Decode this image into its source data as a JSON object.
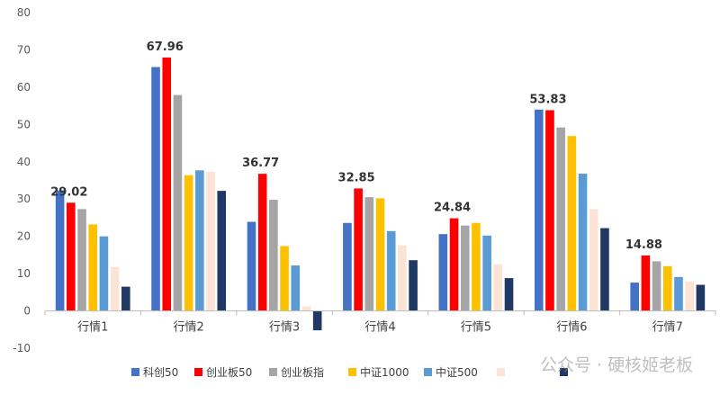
{
  "chart_data": {
    "type": "bar",
    "categories": [
      "行情1",
      "行情2",
      "行情3",
      "行情4",
      "行情5",
      "行情6",
      "行情7"
    ],
    "series": [
      {
        "name": "科创50",
        "color": "#4472C4",
        "values": [
          32.3,
          65.4,
          23.9,
          23.6,
          20.6,
          54.0,
          7.6
        ]
      },
      {
        "name": "创业板50",
        "color": "#FF0000",
        "values": [
          29.02,
          67.96,
          36.77,
          32.85,
          24.84,
          53.83,
          14.88
        ]
      },
      {
        "name": "创业板指",
        "color": "#A5A5A5",
        "values": [
          27.3,
          57.9,
          29.8,
          30.5,
          22.9,
          49.2,
          13.3
        ]
      },
      {
        "name": "中证1000",
        "color": "#FFC000",
        "values": [
          23.2,
          36.4,
          17.4,
          30.2,
          23.6,
          46.9,
          12.0
        ]
      },
      {
        "name": "中证500",
        "color": "#5B9BD5",
        "values": [
          20.0,
          37.7,
          12.2,
          21.4,
          20.2,
          36.8,
          9.1
        ]
      },
      {
        "name": "",
        "color": "#FBE3D6",
        "values": [
          11.8,
          37.3,
          1.2,
          17.6,
          12.5,
          27.3,
          7.9
        ]
      },
      {
        "name": "",
        "color": "#203864",
        "values": [
          6.5,
          32.2,
          -5.2,
          13.6,
          8.8,
          22.2,
          7.0
        ]
      }
    ],
    "data_labels": [
      "29.02",
      "67.96",
      "36.77",
      "32.85",
      "24.84",
      "53.83",
      "14.88"
    ],
    "y_ticks": [
      "80",
      "70",
      "60",
      "50",
      "40",
      "30",
      "20",
      "10",
      "0",
      "-10"
    ],
    "ylim": [
      -10,
      80
    ],
    "title": "",
    "xlabel": "",
    "ylabel": "",
    "grid": false,
    "legend_position": "bottom"
  },
  "watermark": "公众号 · 硬核姬老板"
}
